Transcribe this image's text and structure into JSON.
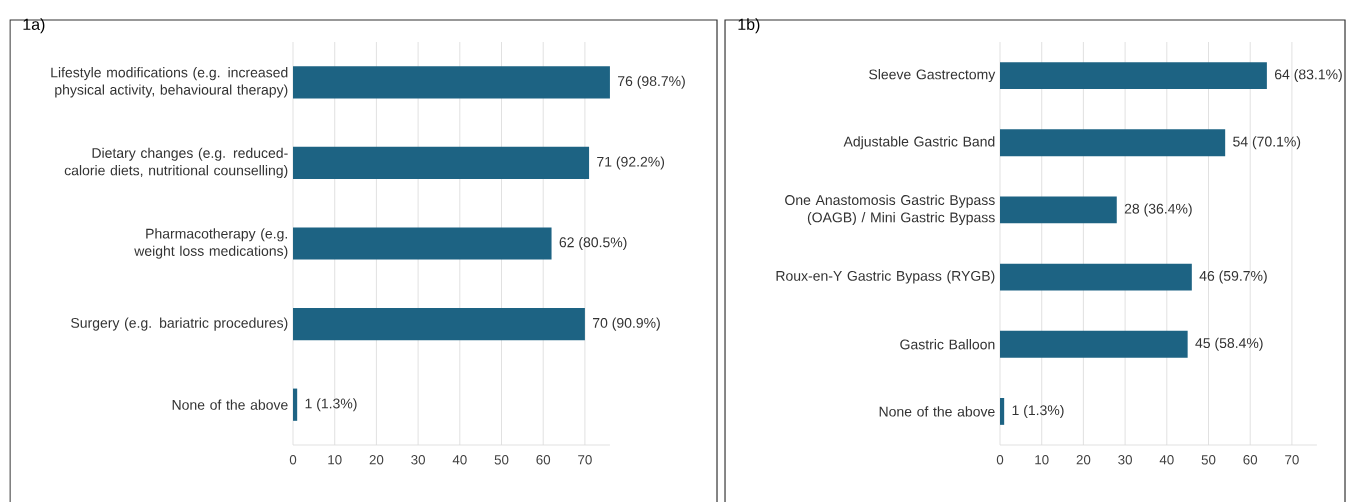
{
  "chart_data": [
    {
      "type": "bar",
      "orientation": "horizontal",
      "title": "1a)",
      "grid": "x",
      "color": "#1d6383",
      "xlim": [
        0,
        76
      ],
      "xticks": [
        0,
        10,
        20,
        30,
        40,
        50,
        60,
        70
      ],
      "categories": [
        "Lifestyle modifications (e.g. increased physical activity, behavioural therapy)",
        "Dietary changes (e.g. reduced-calorie diets, nutritional counselling)",
        "Pharmacotherapy (e.g. weight loss medications)",
        "Surgery (e.g. bariatric procedures)",
        "None of the above"
      ],
      "values": [
        76,
        71,
        62,
        70,
        1
      ],
      "value_labels": [
        "76 (98.7%)",
        "71 (92.2%)",
        "62 (80.5%)",
        "70 (90.9%)",
        "1 (1.3%)"
      ]
    },
    {
      "type": "bar",
      "orientation": "horizontal",
      "title": "1b)",
      "grid": "x",
      "color": "#1d6383",
      "xlim": [
        0,
        76
      ],
      "xticks": [
        0,
        10,
        20,
        30,
        40,
        50,
        60,
        70
      ],
      "categories": [
        "Sleeve Gastrectomy",
        "Adjustable Gastric Band",
        "One Anastomosis Gastric Bypass (OAGB) / Mini Gastric Bypass",
        "Roux-en-Y Gastric Bypass (RYGB)",
        "Gastric Balloon",
        "None of the above"
      ],
      "values": [
        64,
        54,
        28,
        46,
        45,
        1
      ],
      "value_labels": [
        "64 (83.1%)",
        "54 (70.1%)",
        "28 (36.4%)",
        "46 (59.7%)",
        "45 (58.4%)",
        "1 (1.3%)"
      ]
    }
  ]
}
